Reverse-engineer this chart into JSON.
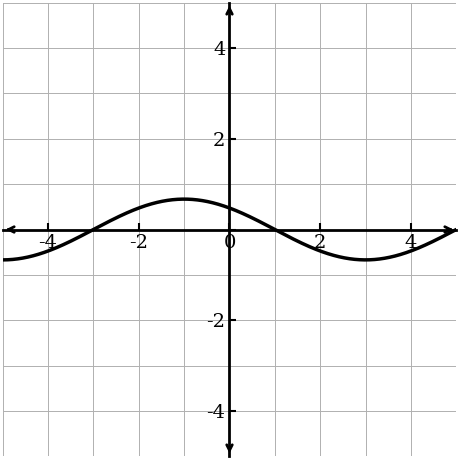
{
  "xlim": [
    -5,
    5
  ],
  "ylim": [
    -5,
    5
  ],
  "xticks": [
    -4,
    -2,
    0,
    2,
    4
  ],
  "yticks": [
    -4,
    -2,
    0,
    2,
    4
  ],
  "grid_color": "#b0b0b0",
  "grid_linewidth": 0.7,
  "axis_color": "#000000",
  "curve_color": "#000000",
  "curve_linewidth": 2.5,
  "amplitude": 0.67,
  "B": 0.7854,
  "C": 1.5708,
  "background_color": "#ffffff",
  "figsize": [
    4.59,
    4.59
  ],
  "dpi": 100
}
